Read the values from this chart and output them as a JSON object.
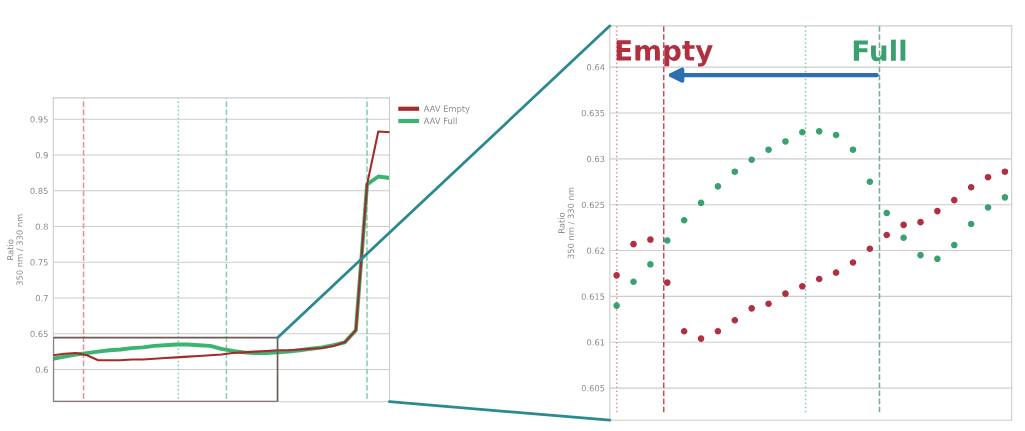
{
  "chart_data": [
    {
      "type": "line",
      "ylabel": "Ratio\n350 nm / 330 nm",
      "categories": [
        null,
        null,
        null,
        null,
        null,
        null,
        null,
        null,
        null,
        null,
        null,
        null,
        null,
        null,
        null,
        null,
        null,
        null,
        null,
        null,
        null,
        null,
        null,
        null,
        null,
        null,
        null,
        null,
        null,
        null,
        null
      ],
      "ylim": [
        0.555,
        0.98
      ],
      "yticks": [
        0.6,
        0.65,
        0.7,
        0.75,
        0.8,
        0.85,
        0.9,
        0.95
      ],
      "grid": "y",
      "legend": "top right",
      "marker": "none",
      "line_style": "solid",
      "series": [
        {
          "name": "AAV Empty",
          "color": "#a52a2a",
          "values": [
            0.62,
            0.622,
            0.623,
            0.62,
            0.613,
            0.613,
            0.613,
            0.614,
            0.614,
            0.615,
            0.616,
            0.617,
            0.618,
            0.619,
            0.62,
            0.621,
            0.623,
            0.624,
            0.625,
            0.626,
            0.627,
            0.627,
            0.628,
            0.629,
            0.63,
            0.633,
            0.638,
            0.655,
            0.859,
            0.933,
            0.932
          ]
        },
        {
          "name": "AAV Full",
          "color": "#3cb371",
          "values": [
            0.615,
            0.618,
            0.621,
            0.623,
            0.625,
            0.627,
            0.628,
            0.63,
            0.631,
            0.633,
            0.634,
            0.635,
            0.635,
            0.634,
            0.633,
            0.629,
            0.626,
            0.624,
            0.623,
            0.623,
            0.624,
            0.625,
            0.627,
            0.629,
            0.631,
            0.634,
            0.638,
            0.655,
            0.859,
            0.87,
            0.868
          ]
        }
      ]
    },
    {
      "type": "scatter",
      "ylabel": "Ratio\n350 nm / 330 nm",
      "categories": [
        null,
        null,
        null,
        null,
        null,
        null,
        null,
        null,
        null,
        null,
        null,
        null,
        null,
        null,
        null,
        null,
        null,
        null,
        null,
        null,
        null,
        null,
        null,
        null
      ],
      "ylim": [
        0.6015,
        0.6445
      ],
      "yticks": [
        0.605,
        0.61,
        0.615,
        0.62,
        0.625,
        0.63,
        0.635,
        0.64
      ],
      "grid": "y",
      "marker": "circle",
      "annotations": [
        "Empty",
        "Full"
      ],
      "series": [
        {
          "color": "#b03040",
          "values": [
            0.6173,
            0.6207,
            0.6212,
            0.6165,
            0.6112,
            0.6104,
            0.6112,
            0.6124,
            0.6137,
            0.6142,
            0.6153,
            0.6161,
            0.6169,
            0.6176,
            0.6187,
            0.6202,
            0.6217,
            0.6228,
            0.6231,
            0.6243,
            0.6255,
            0.6269,
            0.628,
            0.6286
          ]
        },
        {
          "color": "#3aa070",
          "values": [
            0.614,
            0.6166,
            0.6185,
            0.6211,
            0.6233,
            0.6252,
            0.627,
            0.6286,
            0.6299,
            0.631,
            0.6319,
            0.6329,
            0.633,
            0.6326,
            0.631,
            0.6275,
            0.6241,
            0.6214,
            0.6195,
            0.6191,
            0.6206,
            0.6229,
            0.6247,
            0.6258
          ]
        }
      ]
    }
  ]
}
